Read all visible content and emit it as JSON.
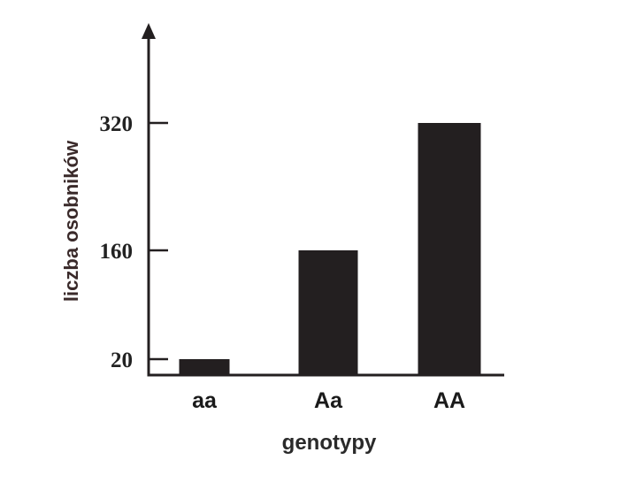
{
  "chart_data": {
    "type": "bar",
    "categories": [
      "aa",
      "Aa",
      "AA"
    ],
    "values": [
      20,
      160,
      320
    ],
    "title": "",
    "xlabel": "genotypy",
    "ylabel": "liczba osobników",
    "yticks": [
      20,
      160,
      320
    ],
    "ytick_labels": [
      "20",
      "160",
      "320"
    ],
    "ylim": [
      0,
      320
    ],
    "grid": false,
    "bar_color": "#231f20",
    "axis_color": "#231f20",
    "ylabel_color": "#4a2e2e"
  }
}
